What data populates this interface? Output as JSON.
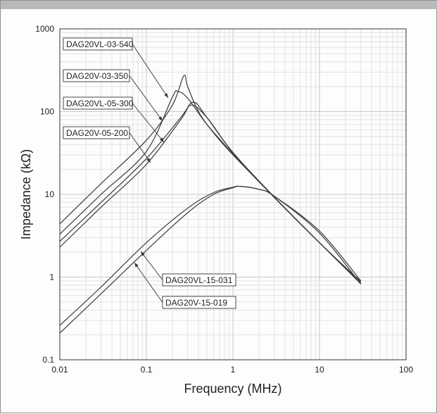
{
  "chart_data": {
    "type": "line",
    "title": "",
    "xlabel": "Frequency (MHz)",
    "ylabel": "Impedance (kΩ)",
    "x_scale": "log",
    "y_scale": "log",
    "xlim": [
      0.01,
      100
    ],
    "ylim": [
      0.1,
      1000
    ],
    "x_ticks": [
      0.01,
      0.1,
      1,
      10,
      100
    ],
    "x_tick_labels": [
      "0.01",
      "0.1",
      "1",
      "10",
      "100"
    ],
    "y_ticks": [
      0.1,
      1,
      10,
      100,
      1000
    ],
    "y_tick_labels": [
      "0.1",
      "1",
      "10",
      "100",
      "1000"
    ],
    "grid": true,
    "series": [
      {
        "name": "DAG20VL-03-540",
        "x": [
          0.01,
          0.03,
          0.1,
          0.2,
          0.27,
          0.3,
          0.4,
          0.6,
          1,
          3,
          10,
          30
        ],
        "y": [
          4.4,
          13.5,
          45,
          120,
          270,
          200,
          100,
          55,
          30,
          9.2,
          2.6,
          0.88
        ]
      },
      {
        "name": "DAG20V-03-350",
        "x": [
          0.01,
          0.03,
          0.1,
          0.2,
          0.23,
          0.3,
          0.5,
          1,
          3,
          10,
          30
        ],
        "y": [
          3.3,
          10.0,
          33,
          150,
          175,
          145,
          70,
          31,
          9.2,
          2.6,
          0.85
        ]
      },
      {
        "name": "DAG20VL-05-300",
        "x": [
          0.01,
          0.03,
          0.1,
          0.25,
          0.35,
          0.5,
          1,
          3,
          10,
          30
        ],
        "y": [
          2.7,
          8.0,
          27,
          85,
          130,
          85,
          32,
          9.2,
          2.6,
          0.85
        ]
      },
      {
        "name": "DAG20V-05-200",
        "x": [
          0.01,
          0.03,
          0.1,
          0.25,
          0.33,
          0.5,
          1,
          3,
          10,
          30
        ],
        "y": [
          2.3,
          7.0,
          23,
          80,
          120,
          85,
          32,
          9.3,
          2.6,
          0.83
        ]
      },
      {
        "name": "DAG20VL-15-031",
        "x": [
          0.01,
          0.03,
          0.1,
          0.3,
          0.6,
          1,
          1.2,
          2,
          3,
          10,
          30
        ],
        "y": [
          0.26,
          0.76,
          2.6,
          6.8,
          10.5,
          12.2,
          12.5,
          11.5,
          9.5,
          3.6,
          0.9
        ]
      },
      {
        "name": "DAG20V-15-019",
        "x": [
          0.01,
          0.03,
          0.1,
          0.3,
          0.6,
          1,
          1.2,
          2,
          3,
          10,
          30
        ],
        "y": [
          0.21,
          0.63,
          2.1,
          6.0,
          10.0,
          12.0,
          12.5,
          11.5,
          9.5,
          3.4,
          0.82
        ]
      }
    ],
    "callouts": [
      "DAG20VL-03-540",
      "DAG20V-03-350",
      "DAG20VL-05-300",
      "DAG20V-05-200",
      "DAG20VL-15-031",
      "DAG20V-15-019"
    ]
  }
}
